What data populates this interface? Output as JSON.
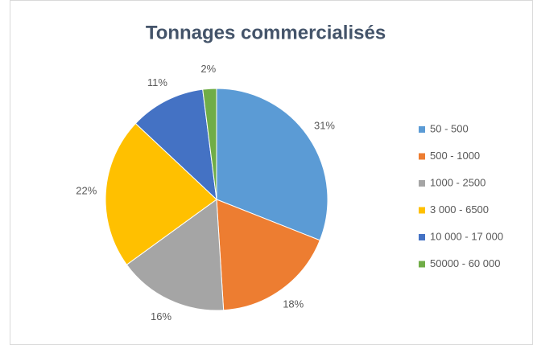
{
  "chart_data": {
    "type": "pie",
    "title": "Tonnages commercialisés",
    "categories": [
      "50 - 500",
      "500 - 1000",
      "1000 - 2500",
      "3 000 - 6500",
      "10 000 - 17 000",
      "50000 - 60 000"
    ],
    "values": [
      31,
      18,
      16,
      22,
      11,
      2
    ],
    "value_labels": [
      "31%",
      "18%",
      "16%",
      "22%",
      "11%",
      "2%"
    ],
    "colors": [
      "#5b9bd5",
      "#ed7d31",
      "#a5a5a5",
      "#ffc000",
      "#4472c4",
      "#70ad47"
    ],
    "legend": "right"
  }
}
